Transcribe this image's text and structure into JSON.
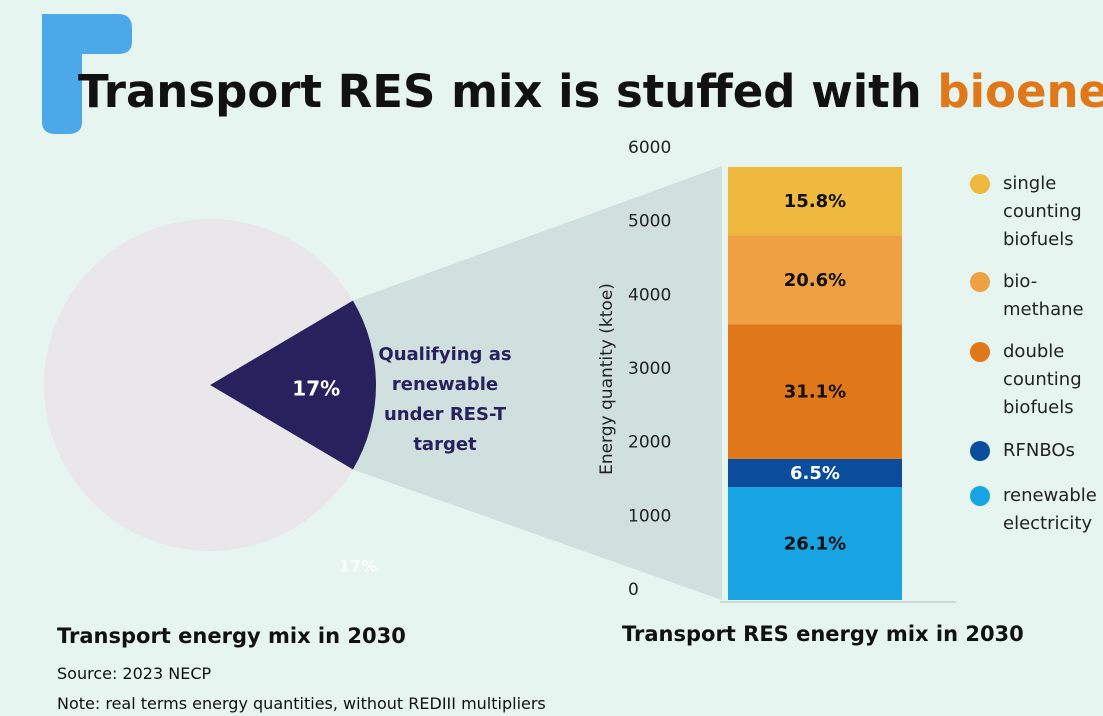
{
  "title": "Transport RES mix is stuffed with",
  "title_highlight": "bioenergy",
  "source": "Source: 2023 NECP",
  "note": "Note: real terms energy quantities, without REDIII multipliers",
  "chart_data": [
    {
      "type": "pie",
      "title": "Transport energy mix in 2030",
      "categories": [
        "Qualifying as renewable under RES-T target",
        null
      ],
      "values": [
        17,
        83
      ],
      "value_labels": [
        "17%",
        null
      ],
      "colors": [
        "#27215e",
        "#e9e7e9"
      ],
      "annotation": "17%"
    },
    {
      "type": "bar",
      "stacked": true,
      "title": "Transport RES energy mix in 2030",
      "ylabel": "Energy quantity (ktoe)",
      "categories": [
        null
      ],
      "ylim": [
        0,
        6000
      ],
      "yticks": [
        0,
        1000,
        2000,
        3000,
        4000,
        5000,
        6000
      ],
      "series": [
        {
          "name": "renewable electricity",
          "color": "#18a3e2",
          "values": [
            1533
          ],
          "value_labels": [
            "26.1%"
          ]
        },
        {
          "name": "RFNBOs",
          "color": "#0b4c9c",
          "values": [
            382
          ],
          "value_labels": [
            "6.5%"
          ]
        },
        {
          "name": "double counting biofuels",
          "color": "#e0781a",
          "values": [
            1826
          ],
          "value_labels": [
            "31.1%"
          ]
        },
        {
          "name": "bio-methane",
          "color": "#eea043",
          "values": [
            1210
          ],
          "value_labels": [
            "20.6%"
          ]
        },
        {
          "name": "single counting biofuels",
          "color": "#eeb93e",
          "values": [
            928
          ],
          "value_labels": [
            "15.8%"
          ]
        }
      ]
    }
  ]
}
